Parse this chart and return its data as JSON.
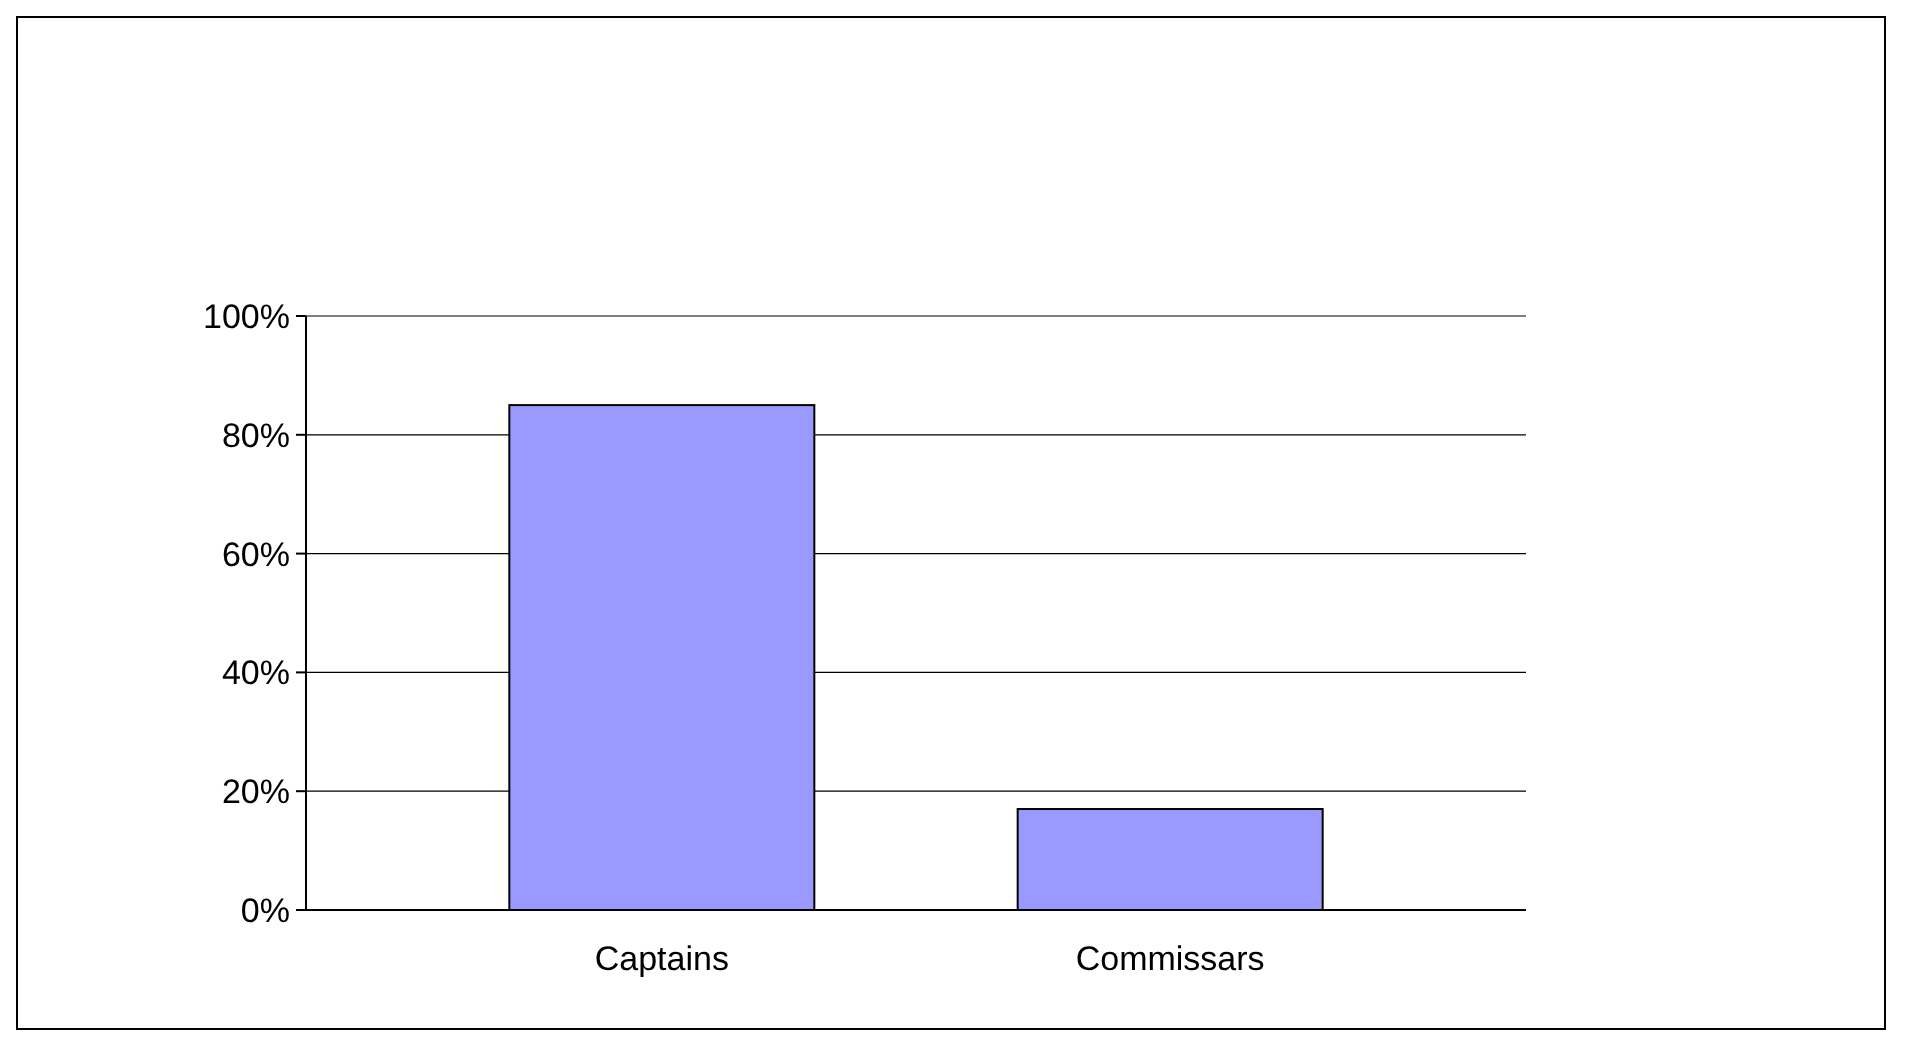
{
  "chart_data": {
    "type": "bar",
    "categories": [
      "Captains",
      "Commissars"
    ],
    "values": [
      85,
      17
    ],
    "color": "#9999ff",
    "ylim": [
      0,
      100
    ],
    "yticks": [
      {
        "value": 0,
        "label": "0%"
      },
      {
        "value": 20,
        "label": "20%"
      },
      {
        "value": 40,
        "label": "40%"
      },
      {
        "value": 60,
        "label": "60%"
      },
      {
        "value": 80,
        "label": "80%"
      },
      {
        "value": 100,
        "label": "100%"
      }
    ],
    "grid": "y"
  }
}
